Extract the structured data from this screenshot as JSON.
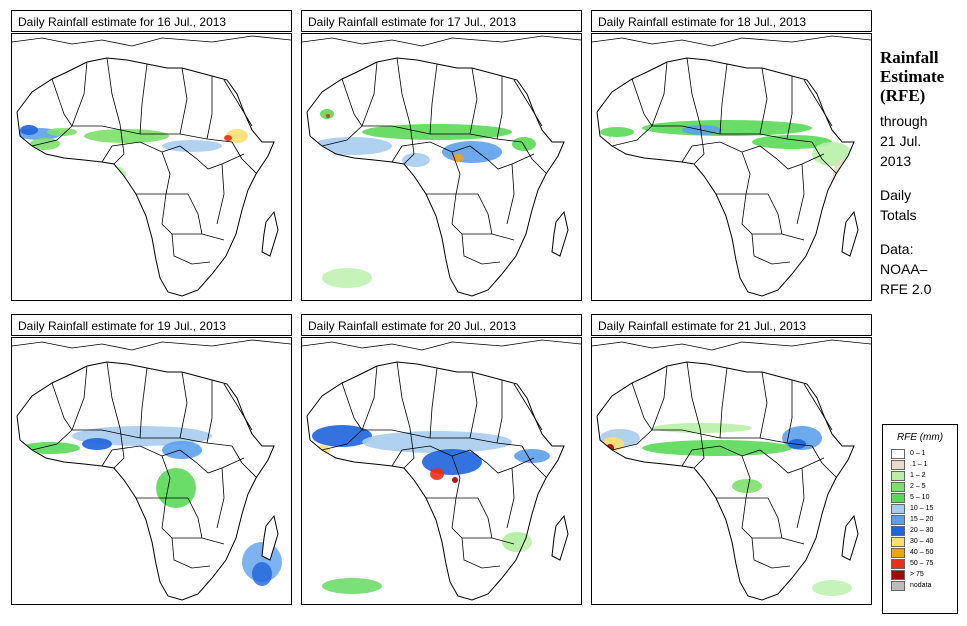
{
  "panels": [
    {
      "title": "Daily Rainfall estimate for  16 Jul., 2013",
      "day": 16
    },
    {
      "title": "Daily Rainfall estimate for  17 Jul., 2013",
      "day": 17
    },
    {
      "title": "Daily Rainfall estimate for  18 Jul., 2013",
      "day": 18
    },
    {
      "title": "Daily Rainfall estimate for  19 Jul., 2013",
      "day": 19
    },
    {
      "title": "Daily Rainfall estimate for  20 Jul., 2013",
      "day": 20
    },
    {
      "title": "Daily Rainfall estimate for  21 Jul., 2013",
      "day": 21
    }
  ],
  "sidebar": {
    "title_line1": "Rainfall",
    "title_line2": "Estimate",
    "title_line3": "(RFE)",
    "through": "through",
    "date_line1": "21 Jul.",
    "date_line2": "2013",
    "daily": "Daily",
    "totals": "Totals",
    "data_label": "Data:",
    "source_line1": "NOAA–",
    "source_line2": "RFE 2.0"
  },
  "legend": {
    "title": "RFE (mm)",
    "items": [
      {
        "label": "0 – 1",
        "color": "#ffffff"
      },
      {
        "label": ".1 – 1",
        "color": "#e8dcc8"
      },
      {
        "label": "1 – 2",
        "color": "#b8f0a8"
      },
      {
        "label": "2 – 5",
        "color": "#7de06a"
      },
      {
        "label": "5 – 10",
        "color": "#5ad858"
      },
      {
        "label": "10 – 15",
        "color": "#a8ccf0"
      },
      {
        "label": "15 – 20",
        "color": "#5ca0ec"
      },
      {
        "label": "20 – 30",
        "color": "#1e64dc"
      },
      {
        "label": "30 – 40",
        "color": "#f8e070"
      },
      {
        "label": "40 – 50",
        "color": "#f4a020"
      },
      {
        "label": "50 – 75",
        "color": "#e83018"
      },
      {
        "label": "> 75",
        "color": "#a80000"
      },
      {
        "label": "nodata",
        "color": "#bcbcbc"
      }
    ]
  }
}
